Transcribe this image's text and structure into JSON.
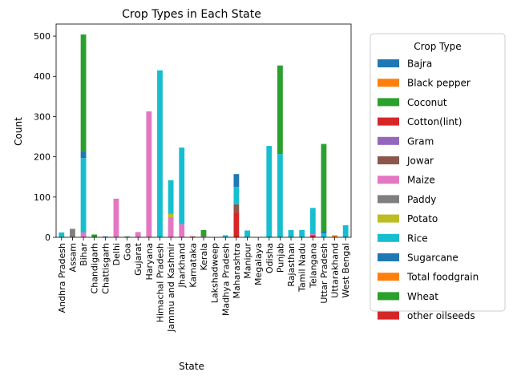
{
  "chart_data": {
    "type": "bar",
    "stacked": true,
    "title": "Crop Types in Each State",
    "xlabel": "State",
    "ylabel": "Count",
    "ylim": [
      0,
      530
    ],
    "yticks": [
      0,
      100,
      200,
      300,
      400,
      500
    ],
    "grid": false,
    "legend_title": "Crop Type",
    "legend_position": "outside-right",
    "categories": [
      "Andhra Pradesh",
      "Assam",
      "Bihar",
      "Chandigarh",
      "Chattisgarh",
      "Delhi",
      "Goa",
      "Gujarat",
      "Haryana",
      "Himachal Pradesh",
      "Jammu and Kashmir",
      "Jharkhand",
      "Karnataka",
      "Kerala",
      "Lakshadweep",
      "Madhya Pradesh",
      "Maharashtra",
      "Manipur",
      "Megalaya",
      "Odisha",
      "Punjab",
      "Rajasthan",
      "Tamil Nadu",
      "Telangana",
      "Uttar Pradesh",
      "Uttarakhand",
      "West Bengal"
    ],
    "series": [
      {
        "name": "Bajra",
        "color": "#1f77b4",
        "values": [
          0,
          0,
          0,
          0,
          0,
          0,
          0,
          0,
          0,
          0,
          0,
          0,
          0,
          0,
          0,
          0,
          0,
          0,
          0,
          0,
          0,
          0,
          0,
          0,
          0,
          0,
          0
        ]
      },
      {
        "name": "Black pepper",
        "color": "#ff7f0e",
        "values": [
          0,
          0,
          0,
          0,
          0,
          0,
          0,
          0,
          0,
          0,
          0,
          0,
          0,
          0,
          0,
          0,
          0,
          0,
          0,
          0,
          0,
          0,
          0,
          0,
          0,
          0,
          0
        ]
      },
      {
        "name": "Coconut",
        "color": "#2ca02c",
        "values": [
          0,
          0,
          0,
          0,
          0,
          0,
          0,
          0,
          0,
          0,
          0,
          0,
          0,
          0,
          0,
          0,
          0,
          0,
          0,
          0,
          0,
          0,
          0,
          0,
          0,
          0,
          0
        ]
      },
      {
        "name": "Cotton(lint)",
        "color": "#d62728",
        "values": [
          0,
          0,
          0,
          0,
          0,
          0,
          0,
          0,
          0,
          0,
          0,
          0,
          0,
          0,
          0,
          0,
          62,
          0,
          0,
          0,
          0,
          0,
          0,
          5,
          0,
          0,
          0
        ]
      },
      {
        "name": "Gram",
        "color": "#9467bd",
        "values": [
          0,
          0,
          0,
          0,
          0,
          0,
          0,
          0,
          0,
          0,
          0,
          0,
          0,
          0,
          0,
          0,
          0,
          0,
          0,
          0,
          0,
          0,
          0,
          0,
          0,
          0,
          0
        ]
      },
      {
        "name": "Jowar",
        "color": "#8c564b",
        "values": [
          0,
          0,
          0,
          0,
          0,
          0,
          0,
          0,
          0,
          0,
          0,
          0,
          0,
          0,
          0,
          0,
          20,
          0,
          0,
          0,
          0,
          0,
          0,
          0,
          0,
          0,
          0
        ]
      },
      {
        "name": "Maize",
        "color": "#e377c2",
        "values": [
          0,
          0,
          12,
          0,
          0,
          96,
          0,
          13,
          313,
          0,
          50,
          33,
          0,
          2,
          0,
          0,
          0,
          0,
          0,
          0,
          0,
          0,
          0,
          3,
          0,
          0,
          0
        ]
      },
      {
        "name": "Paddy",
        "color": "#7f7f7f",
        "values": [
          0,
          21,
          0,
          0,
          0,
          0,
          0,
          0,
          0,
          0,
          0,
          0,
          0,
          0,
          0,
          0,
          0,
          0,
          0,
          0,
          0,
          0,
          0,
          0,
          0,
          0,
          0
        ]
      },
      {
        "name": "Potato",
        "color": "#bcbd22",
        "values": [
          0,
          0,
          0,
          0,
          0,
          0,
          0,
          0,
          0,
          0,
          8,
          0,
          0,
          0,
          0,
          0,
          0,
          0,
          0,
          0,
          0,
          0,
          0,
          0,
          0,
          0,
          0
        ]
      },
      {
        "name": "Rice",
        "color": "#17becf",
        "values": [
          12,
          0,
          185,
          0,
          0,
          0,
          0,
          0,
          0,
          415,
          84,
          190,
          0,
          0,
          0,
          5,
          43,
          17,
          0,
          227,
          207,
          18,
          18,
          65,
          10,
          0,
          30
        ]
      },
      {
        "name": "Sugarcane",
        "color": "#1f77b4",
        "values": [
          0,
          0,
          17,
          0,
          2,
          0,
          0,
          0,
          0,
          0,
          0,
          0,
          0,
          0,
          0,
          0,
          32,
          0,
          0,
          0,
          0,
          0,
          0,
          0,
          5,
          0,
          0
        ]
      },
      {
        "name": "Total foodgrain",
        "color": "#ff7f0e",
        "values": [
          0,
          0,
          0,
          0,
          0,
          0,
          0,
          0,
          0,
          0,
          0,
          0,
          0,
          0,
          0,
          0,
          0,
          0,
          0,
          0,
          0,
          0,
          0,
          0,
          0,
          5,
          0
        ]
      },
      {
        "name": "Wheat",
        "color": "#2ca02c",
        "values": [
          0,
          0,
          290,
          7,
          0,
          0,
          2,
          0,
          0,
          0,
          0,
          0,
          0,
          16,
          0,
          0,
          0,
          0,
          0,
          0,
          220,
          0,
          0,
          0,
          217,
          0,
          0
        ]
      },
      {
        "name": "other oilseeds",
        "color": "#d62728",
        "values": [
          0,
          0,
          0,
          0,
          0,
          0,
          0,
          0,
          0,
          0,
          0,
          0,
          2,
          0,
          0,
          0,
          0,
          0,
          0,
          0,
          0,
          0,
          0,
          0,
          0,
          0,
          0
        ]
      }
    ]
  }
}
